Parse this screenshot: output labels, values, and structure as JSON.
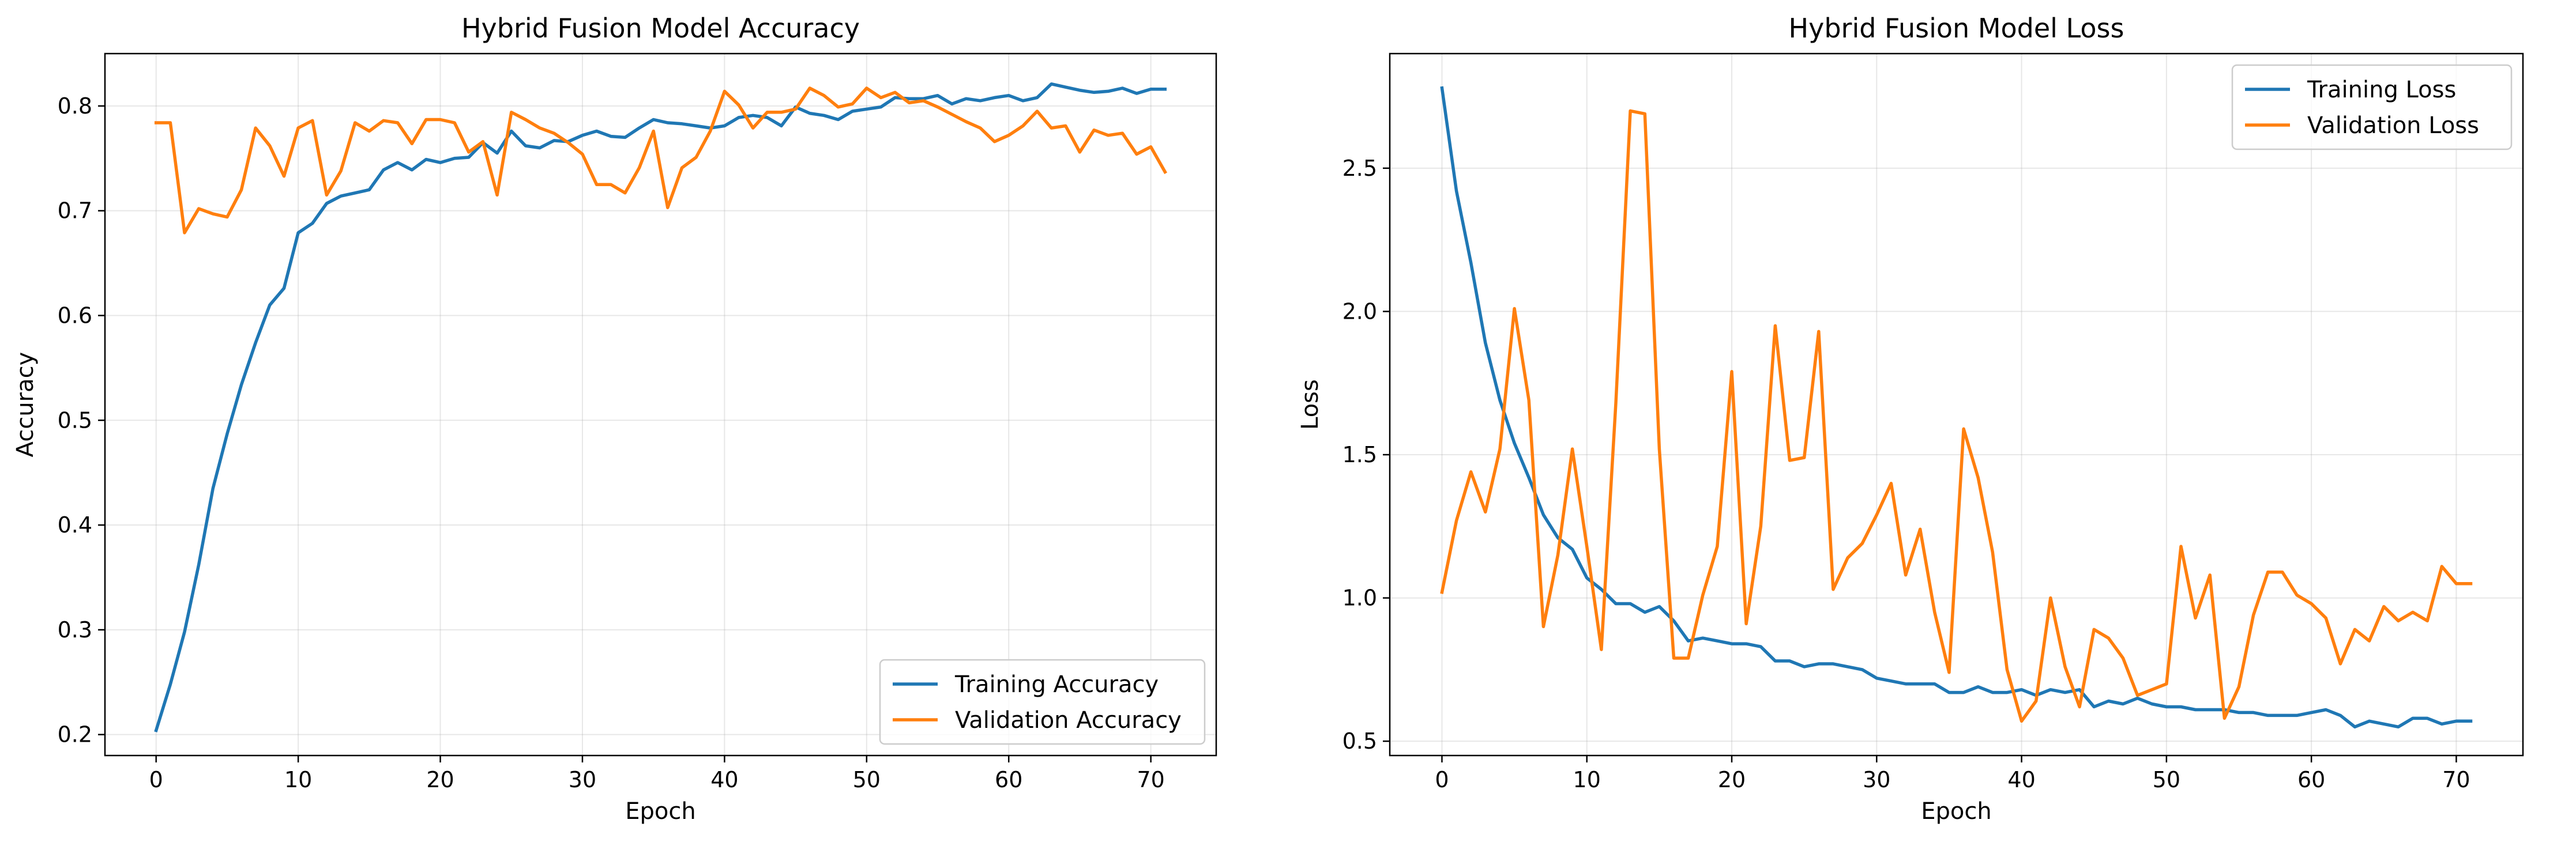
{
  "colors": {
    "training": "#1f77b4",
    "validation": "#ff7f0e",
    "grid": "#b0b0b0"
  },
  "chart_data": [
    {
      "type": "line",
      "title": "Hybrid Fusion Model Accuracy",
      "xlabel": "Epoch",
      "ylabel": "Accuracy",
      "xlim": [
        -3.6,
        74.6
      ],
      "ylim": [
        0.18,
        0.85
      ],
      "xticks": [
        0,
        10,
        20,
        30,
        40,
        50,
        60,
        70
      ],
      "xtick_labels": [
        "0",
        "10",
        "20",
        "30",
        "40",
        "50",
        "60",
        "70"
      ],
      "yticks": [
        0.2,
        0.3,
        0.4,
        0.5,
        0.6,
        0.7,
        0.8
      ],
      "ytick_labels": [
        "0.2",
        "0.3",
        "0.4",
        "0.5",
        "0.6",
        "0.7",
        "0.8"
      ],
      "grid": true,
      "legend_position": "bottom-right",
      "series": [
        {
          "name": "Training Accuracy",
          "color": "training",
          "values": [
            0.204,
            0.248,
            0.298,
            0.362,
            0.435,
            0.487,
            0.534,
            0.574,
            0.61,
            0.626,
            0.679,
            0.688,
            0.707,
            0.714,
            0.717,
            0.72,
            0.739,
            0.746,
            0.739,
            0.749,
            0.746,
            0.75,
            0.751,
            0.765,
            0.755,
            0.776,
            0.762,
            0.76,
            0.767,
            0.766,
            0.772,
            0.776,
            0.771,
            0.77,
            0.779,
            0.787,
            0.784,
            0.783,
            0.781,
            0.779,
            0.781,
            0.789,
            0.791,
            0.789,
            0.781,
            0.799,
            0.793,
            0.791,
            0.787,
            0.795,
            0.797,
            0.799,
            0.808,
            0.807,
            0.807,
            0.81,
            0.802,
            0.807,
            0.805,
            0.808,
            0.81,
            0.805,
            0.808,
            0.821,
            0.818,
            0.815,
            0.813,
            0.814,
            0.817,
            0.812,
            0.816,
            0.816
          ]
        },
        {
          "name": "Validation Accuracy",
          "color": "validation",
          "values": [
            0.784,
            0.784,
            0.679,
            0.702,
            0.697,
            0.694,
            0.72,
            0.779,
            0.762,
            0.733,
            0.779,
            0.786,
            0.715,
            0.738,
            0.784,
            0.776,
            0.786,
            0.784,
            0.764,
            0.787,
            0.787,
            0.784,
            0.756,
            0.766,
            0.715,
            0.794,
            0.787,
            0.779,
            0.774,
            0.765,
            0.754,
            0.725,
            0.725,
            0.717,
            0.741,
            0.776,
            0.703,
            0.741,
            0.751,
            0.776,
            0.814,
            0.801,
            0.779,
            0.794,
            0.794,
            0.797,
            0.817,
            0.81,
            0.799,
            0.802,
            0.817,
            0.808,
            0.813,
            0.803,
            0.805,
            0.799,
            0.792,
            0.785,
            0.779,
            0.766,
            0.772,
            0.781,
            0.795,
            0.779,
            0.781,
            0.756,
            0.777,
            0.772,
            0.774,
            0.754,
            0.761,
            0.737
          ]
        }
      ]
    },
    {
      "type": "line",
      "title": "Hybrid Fusion Model Loss",
      "xlabel": "Epoch",
      "ylabel": "Loss",
      "xlim": [
        -3.6,
        74.6
      ],
      "ylim": [
        0.45,
        2.9
      ],
      "xticks": [
        0,
        10,
        20,
        30,
        40,
        50,
        60,
        70
      ],
      "xtick_labels": [
        "0",
        "10",
        "20",
        "30",
        "40",
        "50",
        "60",
        "70"
      ],
      "yticks": [
        0.5,
        1.0,
        1.5,
        2.0,
        2.5
      ],
      "ytick_labels": [
        "0.5",
        "1.0",
        "1.5",
        "2.0",
        "2.5"
      ],
      "grid": true,
      "legend_position": "top-right",
      "series": [
        {
          "name": "Training Loss",
          "color": "training",
          "values": [
            2.78,
            2.42,
            2.17,
            1.89,
            1.69,
            1.54,
            1.42,
            1.29,
            1.21,
            1.17,
            1.07,
            1.03,
            0.98,
            0.98,
            0.95,
            0.97,
            0.92,
            0.85,
            0.86,
            0.85,
            0.84,
            0.84,
            0.83,
            0.78,
            0.78,
            0.76,
            0.77,
            0.77,
            0.76,
            0.75,
            0.72,
            0.71,
            0.7,
            0.7,
            0.7,
            0.67,
            0.67,
            0.69,
            0.67,
            0.67,
            0.68,
            0.66,
            0.68,
            0.67,
            0.68,
            0.62,
            0.64,
            0.63,
            0.65,
            0.63,
            0.62,
            0.62,
            0.61,
            0.61,
            0.61,
            0.6,
            0.6,
            0.59,
            0.59,
            0.59,
            0.6,
            0.61,
            0.59,
            0.55,
            0.57,
            0.56,
            0.55,
            0.58,
            0.58,
            0.56,
            0.57,
            0.57
          ]
        },
        {
          "name": "Validation Loss",
          "color": "validation",
          "values": [
            1.02,
            1.27,
            1.44,
            1.3,
            1.52,
            2.01,
            1.69,
            0.9,
            1.15,
            1.52,
            1.18,
            0.82,
            1.68,
            2.7,
            2.69,
            1.52,
            0.79,
            0.79,
            1.01,
            1.18,
            1.79,
            0.91,
            1.25,
            1.95,
            1.48,
            1.49,
            1.93,
            1.03,
            1.14,
            1.19,
            1.29,
            1.4,
            1.08,
            1.24,
            0.95,
            0.74,
            1.59,
            1.42,
            1.16,
            0.75,
            0.57,
            0.64,
            1.0,
            0.76,
            0.62,
            0.89,
            0.86,
            0.79,
            0.66,
            0.68,
            0.7,
            1.18,
            0.93,
            1.08,
            0.58,
            0.69,
            0.94,
            1.09,
            1.09,
            1.01,
            0.98,
            0.93,
            0.77,
            0.89,
            0.85,
            0.97,
            0.92,
            0.95,
            0.92,
            1.11,
            1.05,
            1.05
          ]
        }
      ]
    }
  ]
}
